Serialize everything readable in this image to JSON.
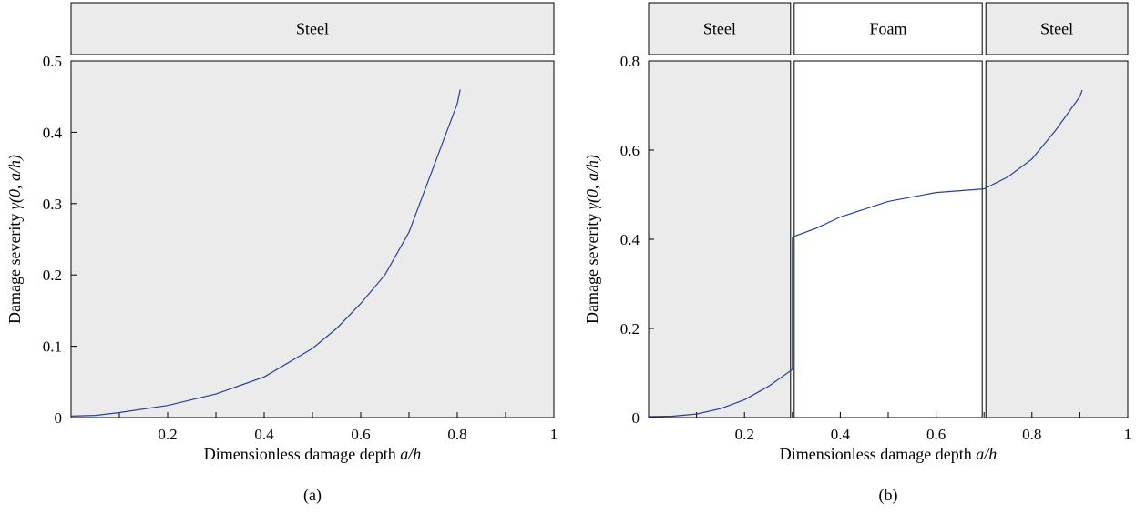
{
  "colors": {
    "panel_fill": "#ebebeb",
    "foam_fill": "#ffffff",
    "border": "#000000",
    "curve": "#2a3f9e"
  },
  "chart_data": [
    {
      "type": "line",
      "caption": "(a)",
      "xlabel": "Dimensionless damage depth a/h",
      "xlabel_parts": {
        "prefix": "Dimensionless damage depth ",
        "var": "a/h"
      },
      "ylabel": "Damage severity γ(0, a/h)",
      "ylabel_parts": {
        "prefix": "Damage severity ",
        "var": "γ(0, a/h)"
      },
      "xlim": [
        0,
        1
      ],
      "ylim": [
        0,
        0.5
      ],
      "xticks": [
        0.2,
        0.4,
        0.6,
        0.8,
        1
      ],
      "xtick_labels": [
        "0.2",
        "0.4",
        "0.6",
        "0.8",
        "1"
      ],
      "yticks": [
        0,
        0.1,
        0.2,
        0.3,
        0.4,
        0.5
      ],
      "ytick_labels": [
        "0",
        "0.1",
        "0.2",
        "0.3",
        "0.4",
        "0.5"
      ],
      "layers": [
        {
          "label": "Steel",
          "from": 0,
          "to": 1
        }
      ],
      "series": [
        {
          "x": [
            0,
            0.05,
            0.1,
            0.2,
            0.3,
            0.4,
            0.5,
            0.55,
            0.6,
            0.65,
            0.7,
            0.75,
            0.8,
            0.806
          ],
          "y": [
            0.002,
            0.003,
            0.007,
            0.017,
            0.033,
            0.057,
            0.097,
            0.125,
            0.16,
            0.2,
            0.26,
            0.35,
            0.44,
            0.46
          ]
        }
      ]
    },
    {
      "type": "line",
      "caption": "(b)",
      "xlabel": "Dimensionless damage depth a/h",
      "xlabel_parts": {
        "prefix": "Dimensionless damage depth ",
        "var": "a/h"
      },
      "ylabel": "Damage severity γ(0, a/h)",
      "ylabel_parts": {
        "prefix": "Damage severity ",
        "var": "γ(0, a/h)"
      },
      "xlim": [
        0,
        1
      ],
      "ylim": [
        0,
        0.8
      ],
      "xticks": [
        0.2,
        0.4,
        0.6,
        0.8,
        1
      ],
      "xtick_labels": [
        "0.2",
        "0.4",
        "0.6",
        "0.8",
        "1"
      ],
      "yticks": [
        0,
        0.2,
        0.4,
        0.6,
        0.8
      ],
      "ytick_labels": [
        "0",
        "0.2",
        "0.4",
        "0.6",
        "0.8"
      ],
      "layers": [
        {
          "label": "Steel",
          "from": 0,
          "to": 0.3
        },
        {
          "label": "Foam",
          "from": 0.3,
          "to": 0.7
        },
        {
          "label": "Steel",
          "from": 0.7,
          "to": 1
        }
      ],
      "series": [
        {
          "x": [
            0,
            0.05,
            0.1,
            0.15,
            0.2,
            0.25,
            0.3,
            0.3,
            0.35,
            0.4,
            0.5,
            0.6,
            0.7,
            0.75,
            0.8,
            0.85,
            0.9,
            0.905
          ],
          "y": [
            0.002,
            0.003,
            0.008,
            0.02,
            0.04,
            0.07,
            0.108,
            0.405,
            0.425,
            0.45,
            0.485,
            0.505,
            0.513,
            0.54,
            0.58,
            0.645,
            0.72,
            0.735
          ]
        }
      ]
    }
  ]
}
